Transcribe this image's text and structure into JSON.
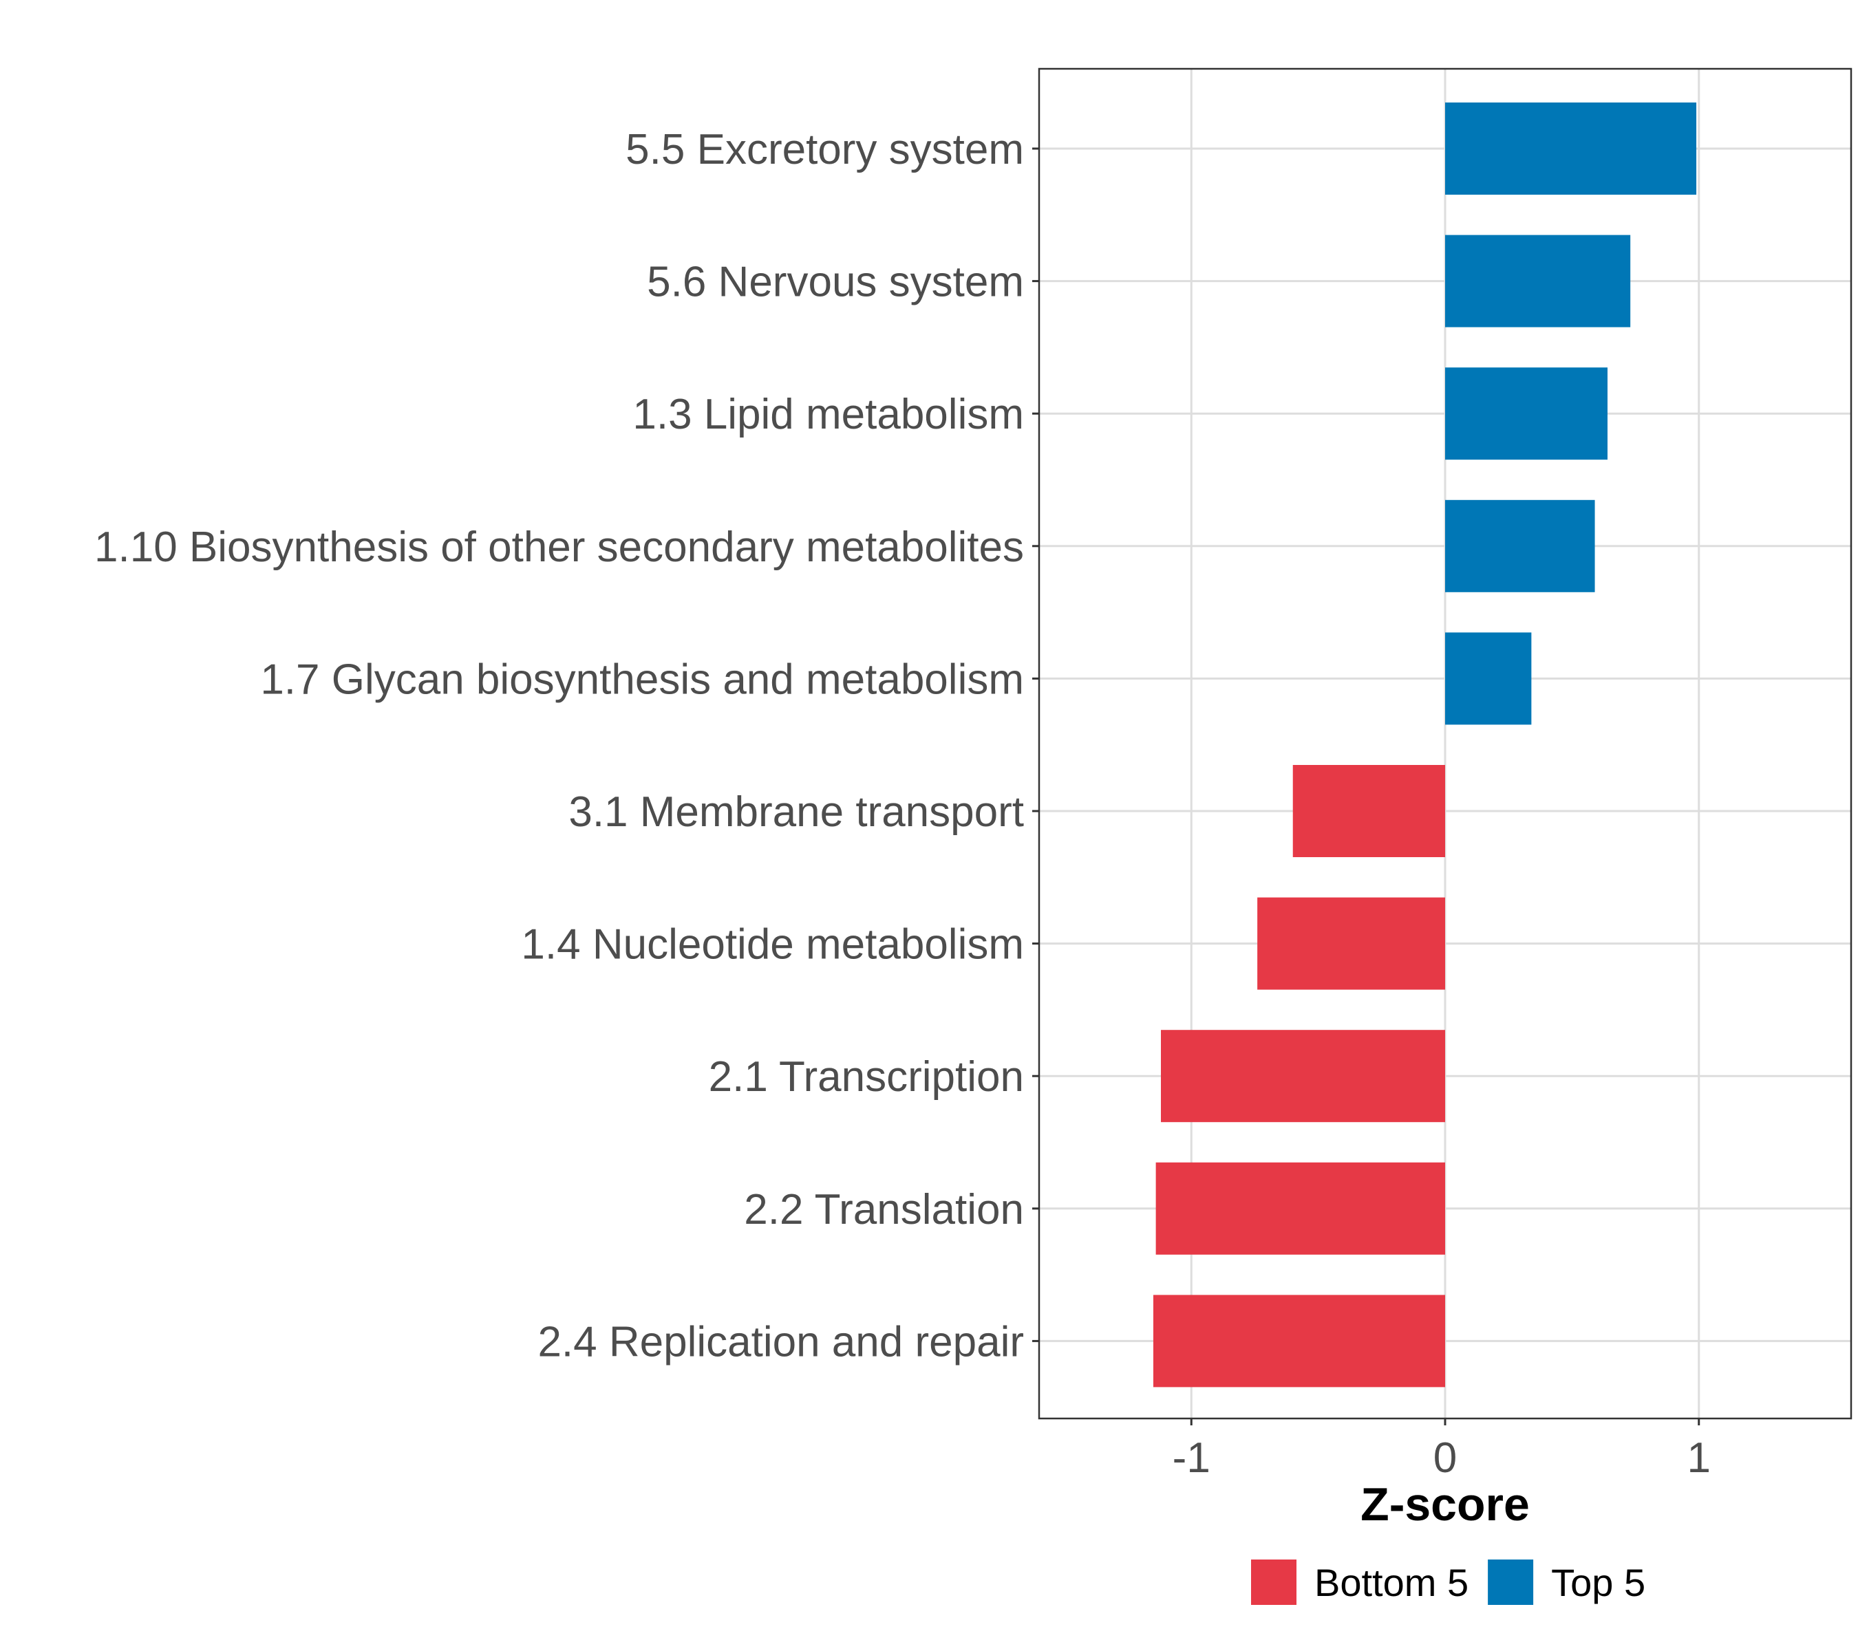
{
  "chart_data": {
    "type": "bar",
    "orientation": "horizontal",
    "categories": [
      "5.5 Excretory system",
      "5.6 Nervous system",
      "1.3 Lipid metabolism",
      "1.10 Biosynthesis of other secondary metabolites",
      "1.7 Glycan biosynthesis and metabolism",
      "3.1 Membrane transport",
      "1.4 Nucleotide metabolism",
      "2.1 Transcription",
      "2.2 Translation",
      "2.4 Replication and repair"
    ],
    "values": [
      0.99,
      0.73,
      0.64,
      0.59,
      0.34,
      -0.6,
      -0.74,
      -1.12,
      -1.14,
      -1.15
    ],
    "groups": [
      "Top 5",
      "Top 5",
      "Top 5",
      "Top 5",
      "Top 5",
      "Bottom 5",
      "Bottom 5",
      "Bottom 5",
      "Bottom 5",
      "Bottom 5"
    ],
    "xlabel": "Z-score",
    "ylabel": "",
    "xlim": [
      -1.6,
      1.6
    ],
    "xticks": [
      -1,
      0,
      1
    ],
    "xtick_labels": [
      "-1",
      "0",
      "1"
    ],
    "grid": true,
    "legend": {
      "position": "bottom",
      "entries": [
        {
          "label": "Bottom 5",
          "color": "#e63946"
        },
        {
          "label": "Top 5",
          "color": "#0077b6"
        }
      ]
    },
    "colors": {
      "Top 5": "#0077b6",
      "Bottom 5": "#e63946"
    }
  }
}
